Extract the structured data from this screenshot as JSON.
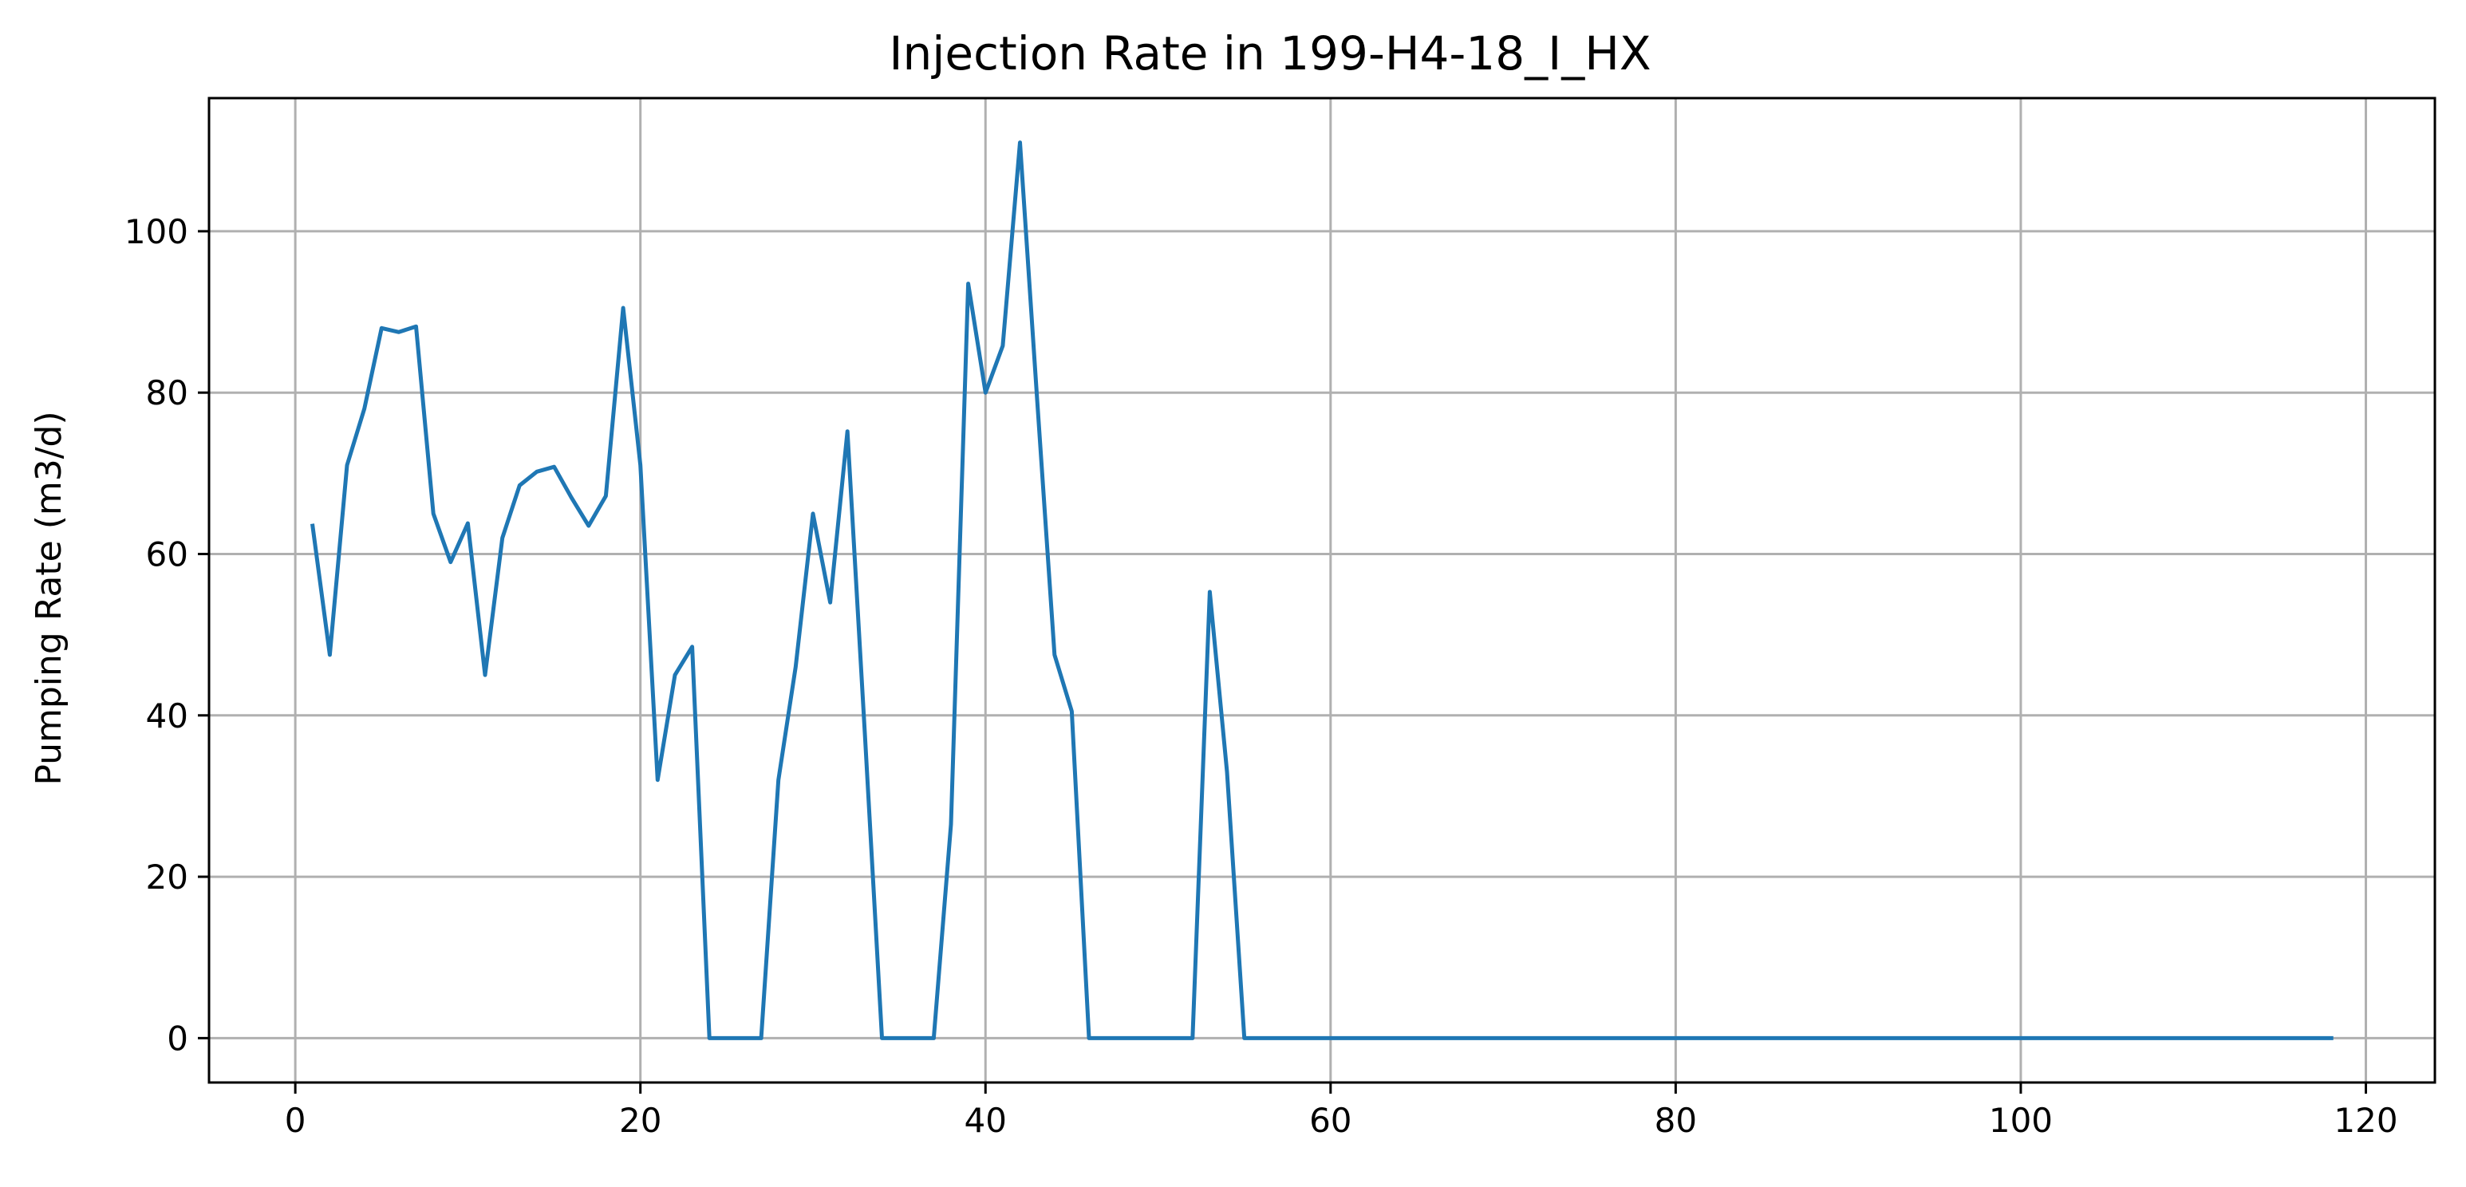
{
  "chart_data": {
    "type": "line",
    "title": "Injection Rate in 199-H4-18_I_HX",
    "xlabel": "",
    "ylabel": "Pumping Rate (m3/d)",
    "xlim": [
      -5,
      124
    ],
    "ylim": [
      -5.5,
      116.5
    ],
    "xticks": [
      0,
      20,
      40,
      60,
      80,
      100,
      120
    ],
    "yticks": [
      0,
      20,
      40,
      60,
      80,
      100
    ],
    "grid": true,
    "series": [
      {
        "color": "#1f77b4",
        "x": [
          1,
          2,
          3,
          4,
          5,
          6,
          7,
          8,
          9,
          10,
          11,
          12,
          13,
          14,
          15,
          16,
          17,
          18,
          19,
          20,
          21,
          22,
          23,
          24,
          25,
          26,
          27,
          28,
          29,
          30,
          31,
          32,
          33,
          34,
          35,
          36,
          37,
          38,
          39,
          40,
          41,
          42,
          43,
          44,
          45,
          46,
          47,
          48,
          49,
          50,
          51,
          52,
          53,
          54,
          55,
          56,
          57,
          58,
          59,
          60,
          61,
          62,
          63,
          64,
          65,
          66,
          67,
          68,
          69,
          70,
          71,
          72,
          73,
          74,
          75,
          76,
          77,
          78,
          79,
          80,
          81,
          82,
          83,
          84,
          85,
          86,
          87,
          88,
          89,
          90,
          91,
          92,
          93,
          94,
          95,
          96,
          97,
          98,
          99,
          100,
          101,
          102,
          103,
          104,
          105,
          106,
          107,
          108,
          109,
          110,
          111,
          112,
          113,
          114,
          115,
          116,
          117,
          118
        ],
        "y": [
          63.5,
          47.5,
          71,
          78,
          88,
          87.5,
          88.2,
          65,
          59,
          63.8,
          45,
          62,
          68.5,
          70.2,
          70.8,
          67,
          63.5,
          67.2,
          90.5,
          71,
          32,
          45,
          48.5,
          0,
          0,
          0,
          0,
          32,
          46,
          65,
          54,
          75.2,
          38,
          0,
          0,
          0,
          0,
          26.5,
          93.5,
          80,
          85.8,
          111,
          79,
          47.5,
          40.5,
          0,
          0,
          0,
          0,
          0,
          0,
          0,
          55.3,
          33,
          0,
          0,
          0,
          0,
          0,
          0,
          0,
          0,
          0,
          0,
          0,
          0,
          0,
          0,
          0,
          0,
          0,
          0,
          0,
          0,
          0,
          0,
          0,
          0,
          0,
          0,
          0,
          0,
          0,
          0,
          0,
          0,
          0,
          0,
          0,
          0,
          0,
          0,
          0,
          0,
          0,
          0,
          0,
          0,
          0,
          0,
          0,
          0,
          0,
          0,
          0,
          0,
          0,
          0,
          0,
          0,
          0,
          0,
          0,
          0,
          0,
          0,
          0,
          0
        ]
      }
    ]
  }
}
